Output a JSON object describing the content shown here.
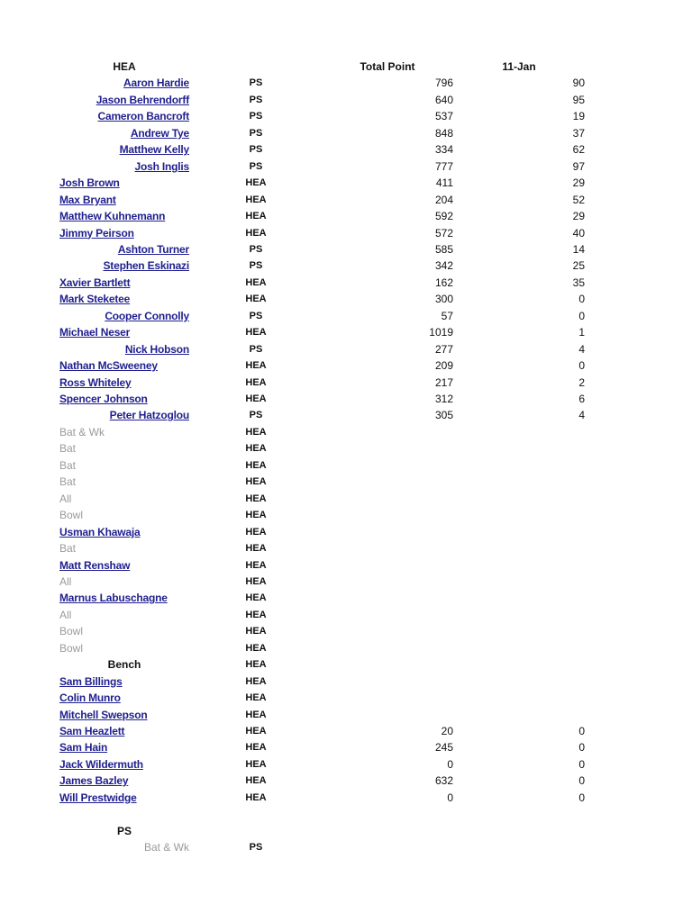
{
  "header": {
    "group": "HEA",
    "total_label": "Total Point",
    "date_label": "11-Jan"
  },
  "rows": [
    {
      "name": "Aaron Hardie",
      "kind": "link-right",
      "team": "PS",
      "total": "796",
      "jan": "90"
    },
    {
      "name": "Jason Behrendorff",
      "kind": "link-right",
      "team": "PS",
      "total": "640",
      "jan": "95"
    },
    {
      "name": "Cameron Bancroft",
      "kind": "link-right",
      "team": "PS",
      "total": "537",
      "jan": "19"
    },
    {
      "name": "Andrew Tye",
      "kind": "link-right",
      "team": "PS",
      "total": "848",
      "jan": "37"
    },
    {
      "name": "Matthew Kelly",
      "kind": "link-right",
      "team": "PS",
      "total": "334",
      "jan": "62"
    },
    {
      "name": "Josh Inglis",
      "kind": "link-right",
      "team": "PS",
      "total": "777",
      "jan": "97"
    },
    {
      "name": "Josh Brown",
      "kind": "link-left",
      "team": "HEA",
      "total": "411",
      "jan": "29"
    },
    {
      "name": "Max Bryant",
      "kind": "link-left",
      "team": "HEA",
      "total": "204",
      "jan": "52"
    },
    {
      "name": "Matthew Kuhnemann",
      "kind": "link-left",
      "team": "HEA",
      "total": "592",
      "jan": "29"
    },
    {
      "name": "Jimmy Peirson",
      "kind": "link-left",
      "team": "HEA",
      "total": "572",
      "jan": "40"
    },
    {
      "name": "Ashton Turner",
      "kind": "link-right",
      "team": "PS",
      "total": "585",
      "jan": "14"
    },
    {
      "name": "Stephen Eskinazi",
      "kind": "link-right",
      "team": "PS",
      "total": "342",
      "jan": "25"
    },
    {
      "name": "Xavier Bartlett",
      "kind": "link-left",
      "team": "HEA",
      "total": "162",
      "jan": "35"
    },
    {
      "name": "Mark Steketee",
      "kind": "link-left",
      "team": "HEA",
      "total": "300",
      "jan": "0"
    },
    {
      "name": "Cooper Connolly",
      "kind": "link-right",
      "team": "PS",
      "total": "57",
      "jan": "0"
    },
    {
      "name": "Michael Neser",
      "kind": "link-left",
      "team": "HEA",
      "total": "1019",
      "jan": "1"
    },
    {
      "name": "Nick Hobson",
      "kind": "link-right",
      "team": "PS",
      "total": "277",
      "jan": "4"
    },
    {
      "name": "Nathan McSweeney",
      "kind": "link-left",
      "team": "HEA",
      "total": "209",
      "jan": "0"
    },
    {
      "name": "Ross Whiteley",
      "kind": "link-left",
      "team": "HEA",
      "total": "217",
      "jan": "2"
    },
    {
      "name": "Spencer Johnson",
      "kind": "link-left",
      "team": "HEA",
      "total": "312",
      "jan": "6"
    },
    {
      "name": "Peter Hatzoglou",
      "kind": "link-right",
      "team": "PS",
      "total": "305",
      "jan": "4"
    },
    {
      "name": "Bat & Wk",
      "kind": "grey-left",
      "team": "HEA"
    },
    {
      "name": "Bat",
      "kind": "grey-left",
      "team": "HEA"
    },
    {
      "name": "Bat",
      "kind": "grey-left",
      "team": "HEA"
    },
    {
      "name": "Bat",
      "kind": "grey-left",
      "team": "HEA"
    },
    {
      "name": "All",
      "kind": "grey-left",
      "team": "HEA"
    },
    {
      "name": "Bowl",
      "kind": "grey-left",
      "team": "HEA"
    },
    {
      "name": "Usman Khawaja",
      "kind": "link-left",
      "team": "HEA"
    },
    {
      "name": "Bat",
      "kind": "grey-left",
      "team": "HEA"
    },
    {
      "name": "Matt Renshaw",
      "kind": "link-left",
      "team": "HEA"
    },
    {
      "name": "All",
      "kind": "grey-left",
      "team": "HEA"
    },
    {
      "name": "Marnus Labuschagne",
      "kind": "link-left",
      "team": "HEA"
    },
    {
      "name": "All",
      "kind": "grey-left",
      "team": "HEA"
    },
    {
      "name": "Bowl",
      "kind": "grey-left",
      "team": "HEA"
    },
    {
      "name": "Bowl",
      "kind": "grey-left",
      "team": "HEA"
    },
    {
      "name": "Bench",
      "kind": "label",
      "team": "HEA"
    },
    {
      "name": "Sam Billings",
      "kind": "link-left",
      "team": "HEA"
    },
    {
      "name": "Colin Munro",
      "kind": "link-left",
      "team": "HEA"
    },
    {
      "name": "Mitchell Swepson",
      "kind": "link-left",
      "team": "HEA"
    },
    {
      "name": "Sam Heazlett",
      "kind": "link-left",
      "team": "HEA",
      "total": "20",
      "jan": "0"
    },
    {
      "name": "Sam Hain",
      "kind": "link-left",
      "team": "HEA",
      "total": "245",
      "jan": "0"
    },
    {
      "name": "Jack Wildermuth",
      "kind": "link-left",
      "team": "HEA",
      "total": "0",
      "jan": "0"
    },
    {
      "name": "James Bazley",
      "kind": "link-left",
      "team": "HEA",
      "total": "632",
      "jan": "0"
    },
    {
      "name": "Will Prestwidge",
      "kind": "link-left",
      "team": "HEA",
      "total": "0",
      "jan": "0"
    },
    {
      "name": "",
      "kind": "blank"
    },
    {
      "name": "PS",
      "kind": "label"
    },
    {
      "name": "Bat & Wk",
      "kind": "grey-right",
      "team": "PS"
    }
  ]
}
